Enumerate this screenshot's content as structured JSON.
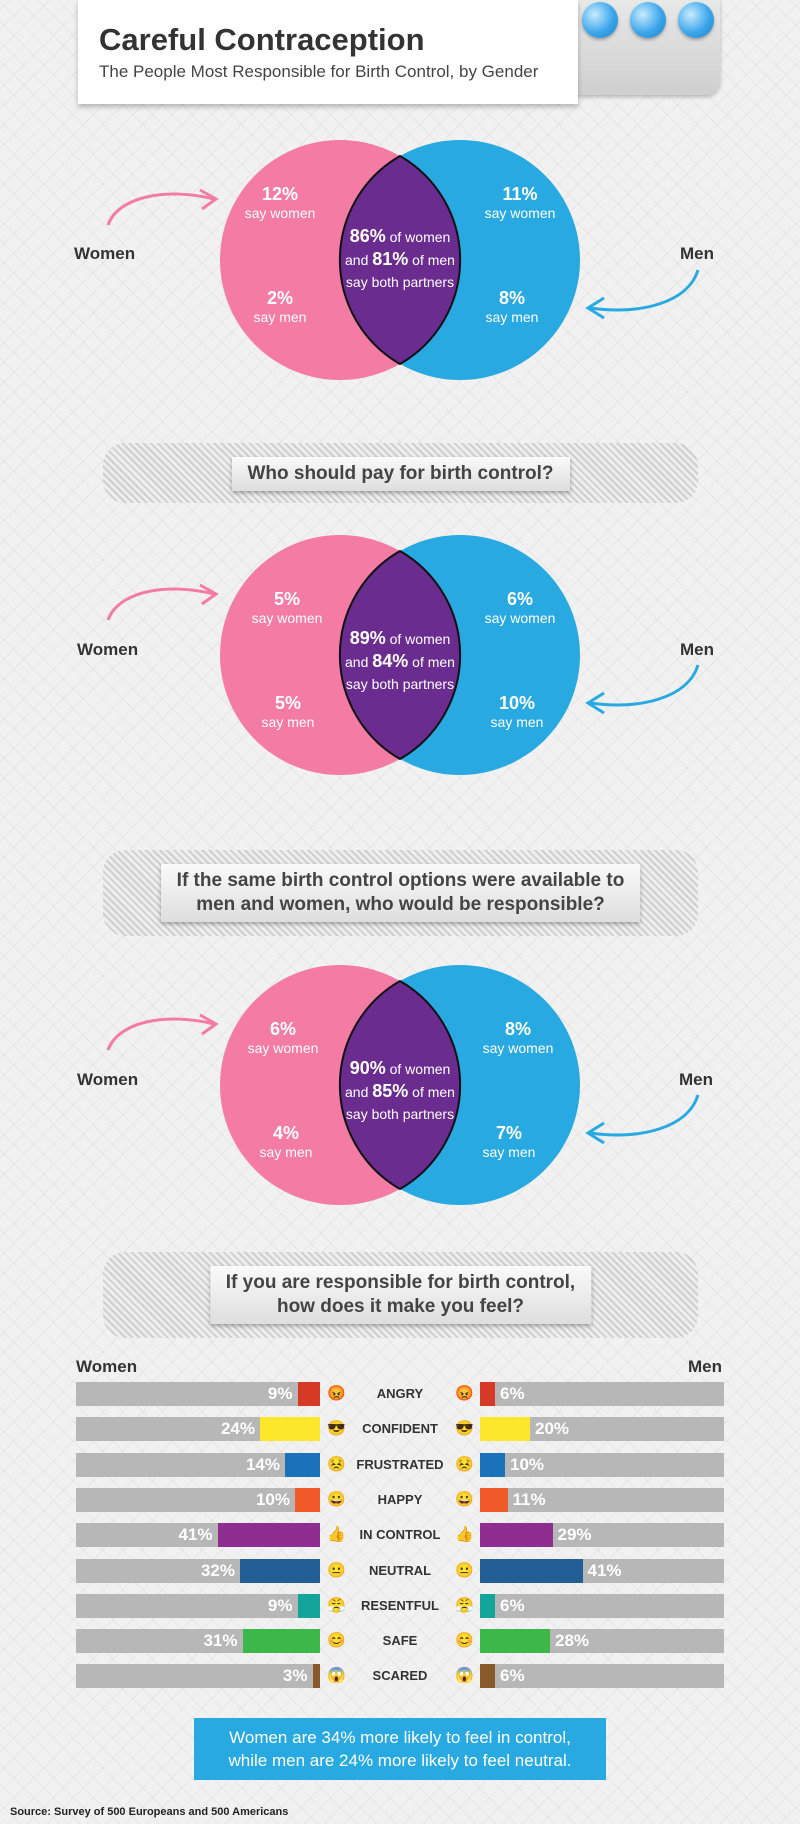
{
  "header": {
    "title": "Careful Contraception",
    "subtitle": "The People Most Responsible for Birth Control, by Gender"
  },
  "colors": {
    "women": "#f47ba3",
    "men": "#29a9e1",
    "both": "#6b2c90",
    "pill": "#3ea6ec"
  },
  "labels": {
    "women": "Women",
    "men": "Men"
  },
  "chart_data": [
    {
      "type": "venn",
      "women": {
        "say_women": "12%",
        "say_men": "2%"
      },
      "men": {
        "say_women": "11%",
        "say_men": "8%"
      },
      "both": {
        "women_pct": "86%",
        "men_pct": "81%"
      },
      "text": {
        "say_women": "say women",
        "say_men": "say men",
        "of_women": "of women",
        "and": "and",
        "of_men": "of men",
        "say_both": "say both partners"
      }
    },
    {
      "type": "venn",
      "question": "Who should pay for birth control?",
      "women": {
        "say_women": "5%",
        "say_men": "5%"
      },
      "men": {
        "say_women": "6%",
        "say_men": "10%"
      },
      "both": {
        "women_pct": "89%",
        "men_pct": "84%"
      },
      "text": {
        "say_women": "say women",
        "say_men": "say men",
        "of_women": "of women",
        "and": "and",
        "of_men": "of men",
        "say_both": "say both partners"
      }
    },
    {
      "type": "venn",
      "question_line1": "If the same birth control options were available to",
      "question_line2": "men and women, who would be responsible?",
      "women": {
        "say_women": "6%",
        "say_men": "4%"
      },
      "men": {
        "say_women": "8%",
        "say_men": "7%"
      },
      "both": {
        "women_pct": "90%",
        "men_pct": "85%"
      },
      "text": {
        "say_women": "say women",
        "say_men": "say men",
        "of_women": "of women",
        "and": "and",
        "of_men": "of men",
        "say_both": "say both partners"
      }
    },
    {
      "type": "bar",
      "question_line1": "If you are responsible for birth control,",
      "question_line2": "how does it make you feel?",
      "women_label": "Women",
      "men_label": "Men",
      "categories": [
        "ANGRY",
        "CONFIDENT",
        "FRUSTRATED",
        "HAPPY",
        "IN CONTROL",
        "NEUTRAL",
        "RESENTFUL",
        "SAFE",
        "SCARED"
      ],
      "icons": [
        "angry-face-icon",
        "sunglasses-face-icon",
        "frustrated-face-icon",
        "happy-face-icon",
        "thumbs-up-icon",
        "neutral-face-icon",
        "resentful-face-icon",
        "smiling-face-icon",
        "scared-face-icon"
      ],
      "series": [
        {
          "name": "Women",
          "values": [
            9,
            24,
            14,
            10,
            41,
            32,
            9,
            31,
            3
          ]
        },
        {
          "name": "Men",
          "values": [
            6,
            20,
            10,
            11,
            29,
            41,
            6,
            28,
            6
          ]
        }
      ],
      "colors": [
        "#d63a25",
        "#fde72a",
        "#1a72bb",
        "#f15a29",
        "#8e2e91",
        "#235f95",
        "#13a59b",
        "#3db64a",
        "#8b5a2b"
      ],
      "xlim": [
        0,
        100
      ]
    }
  ],
  "callout": {
    "line1": "Women are 34% more likely to feel in control,",
    "line2": "while men are 24% more likely to feel neutral."
  },
  "source": "Source: Survey of 500 Europeans and 500 Americans"
}
